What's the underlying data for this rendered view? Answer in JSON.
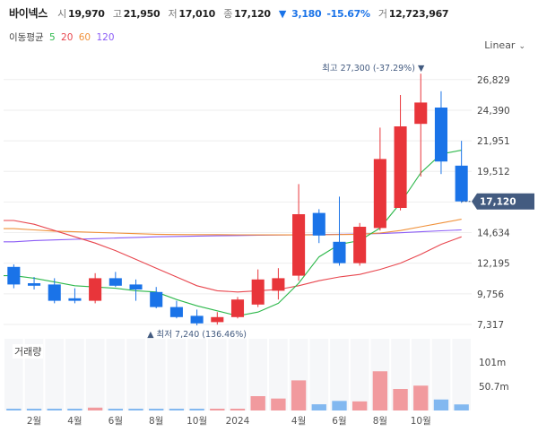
{
  "header": {
    "name": "바이넥스",
    "open_label": "시",
    "open": "19,970",
    "high_label": "고",
    "high": "21,950",
    "low_label": "저",
    "low": "17,010",
    "close_label": "종",
    "close": "17,120",
    "change_arrow": "▼",
    "change": "3,180",
    "change_pct": "-15.67%",
    "volume_label": "거",
    "volume": "12,723,967"
  },
  "ma_legend": {
    "title": "이동평균",
    "periods": [
      {
        "label": "5",
        "color": "#2db84b"
      },
      {
        "label": "20",
        "color": "#e8464e"
      },
      {
        "label": "60",
        "color": "#f0913a"
      },
      {
        "label": "120",
        "color": "#8b5cf6"
      }
    ]
  },
  "scale_button": {
    "label": "Linear",
    "icon": "chevron-down-icon"
  },
  "colors": {
    "up": "#e8353a",
    "down": "#1a73e8",
    "up_vol": "#f19a9e",
    "down_vol": "#82b8f0",
    "grid": "#eeeeee",
    "current_bg": "#435b80"
  },
  "annotations": {
    "max_label": "최고 27,300 (-37.29%) ▼",
    "min_label": "▲ 최저 7,240 (136.46%)"
  },
  "current_price": "17,120",
  "volume_title": "거래량",
  "chart_data": {
    "type": "candlestick",
    "price_axis": {
      "ticks": [
        7317,
        9756,
        12195,
        14634,
        17073,
        19512,
        21951,
        24390,
        26829
      ],
      "labels": [
        "7,317",
        "9,756",
        "12,195",
        "14,634",
        "",
        "19,512",
        "21,951",
        "24,390",
        "26,829"
      ],
      "ylim": [
        6600,
        28600
      ]
    },
    "x_labels": [
      "2월",
      "4월",
      "6월",
      "8월",
      "10월",
      "2024",
      "4월",
      "6월",
      "8월",
      "10월"
    ],
    "x_label_candle_index": [
      1,
      3,
      5,
      7,
      9,
      11,
      14,
      16,
      18,
      20
    ],
    "candles": [
      {
        "o": 11900,
        "h": 12100,
        "l": 10200,
        "c": 10500
      },
      {
        "o": 10600,
        "h": 11100,
        "l": 10100,
        "c": 10400
      },
      {
        "o": 10500,
        "h": 11000,
        "l": 9000,
        "c": 9200
      },
      {
        "o": 9400,
        "h": 10200,
        "l": 9000,
        "c": 9200
      },
      {
        "o": 9200,
        "h": 11400,
        "l": 9000,
        "c": 11000
      },
      {
        "o": 11000,
        "h": 11500,
        "l": 10300,
        "c": 10400
      },
      {
        "o": 10500,
        "h": 10900,
        "l": 9200,
        "c": 10100
      },
      {
        "o": 9900,
        "h": 10300,
        "l": 8600,
        "c": 8700
      },
      {
        "o": 8700,
        "h": 9200,
        "l": 7800,
        "c": 7900
      },
      {
        "o": 8000,
        "h": 8500,
        "l": 7240,
        "c": 7400
      },
      {
        "o": 7500,
        "h": 8300,
        "l": 7300,
        "c": 7900
      },
      {
        "o": 7900,
        "h": 9500,
        "l": 7800,
        "c": 9300
      },
      {
        "o": 8900,
        "h": 11700,
        "l": 8700,
        "c": 10900
      },
      {
        "o": 10000,
        "h": 11800,
        "l": 9300,
        "c": 11000
      },
      {
        "o": 11200,
        "h": 18500,
        "l": 10800,
        "c": 16100
      },
      {
        "o": 16200,
        "h": 16500,
        "l": 13800,
        "c": 14400
      },
      {
        "o": 13900,
        "h": 17500,
        "l": 12000,
        "c": 12200
      },
      {
        "o": 12200,
        "h": 15400,
        "l": 12000,
        "c": 15100
      },
      {
        "o": 15000,
        "h": 23000,
        "l": 14800,
        "c": 20500
      },
      {
        "o": 16600,
        "h": 25600,
        "l": 16400,
        "c": 23100
      },
      {
        "o": 23300,
        "h": 27300,
        "l": 19100,
        "c": 25000
      },
      {
        "o": 24600,
        "h": 25900,
        "l": 19300,
        "c": 20300
      },
      {
        "o": 19970,
        "h": 21950,
        "l": 17010,
        "c": 17120
      }
    ],
    "volume": {
      "axis_labels": [
        "101m",
        "50.7m"
      ],
      "axis_values": [
        101,
        50.7
      ],
      "unit": "m",
      "max": 150,
      "values": [
        1.5,
        1.5,
        2.0,
        2.5,
        6.0,
        1.5,
        1.5,
        1.5,
        2.0,
        1.5,
        1.5,
        1.5,
        30.0,
        25.0,
        63.0,
        13.0,
        20.0,
        19.0,
        82.0,
        45.0,
        52.0,
        23.0,
        12.7
      ]
    },
    "ma5": [
      11200,
      11000,
      10700,
      10400,
      10300,
      10200,
      10000,
      9900,
      9300,
      8800,
      8400,
      8000,
      8300,
      9000,
      10600,
      12700,
      13700,
      14000,
      15000,
      17000,
      19400,
      20900,
      21200
    ],
    "ma20": [
      15600,
      15300,
      14800,
      14300,
      13800,
      13200,
      12500,
      11800,
      11100,
      10400,
      10000,
      9900,
      10000,
      10100,
      10400,
      10800,
      11100,
      11300,
      11700,
      12200,
      12900,
      13700,
      14300
    ],
    "ma60": [
      14950,
      14850,
      14750,
      14700,
      14650,
      14600,
      14550,
      14500,
      14480,
      14470,
      14470,
      14460,
      14450,
      14450,
      14450,
      14460,
      14480,
      14500,
      14600,
      14800,
      15100,
      15400,
      15700
    ],
    "ma120": [
      13900,
      14000,
      14050,
      14100,
      14150,
      14200,
      14250,
      14300,
      14330,
      14360,
      14380,
      14400,
      14420,
      14440,
      14460,
      14480,
      14500,
      14520,
      14560,
      14620,
      14700,
      14780,
      14850
    ]
  }
}
